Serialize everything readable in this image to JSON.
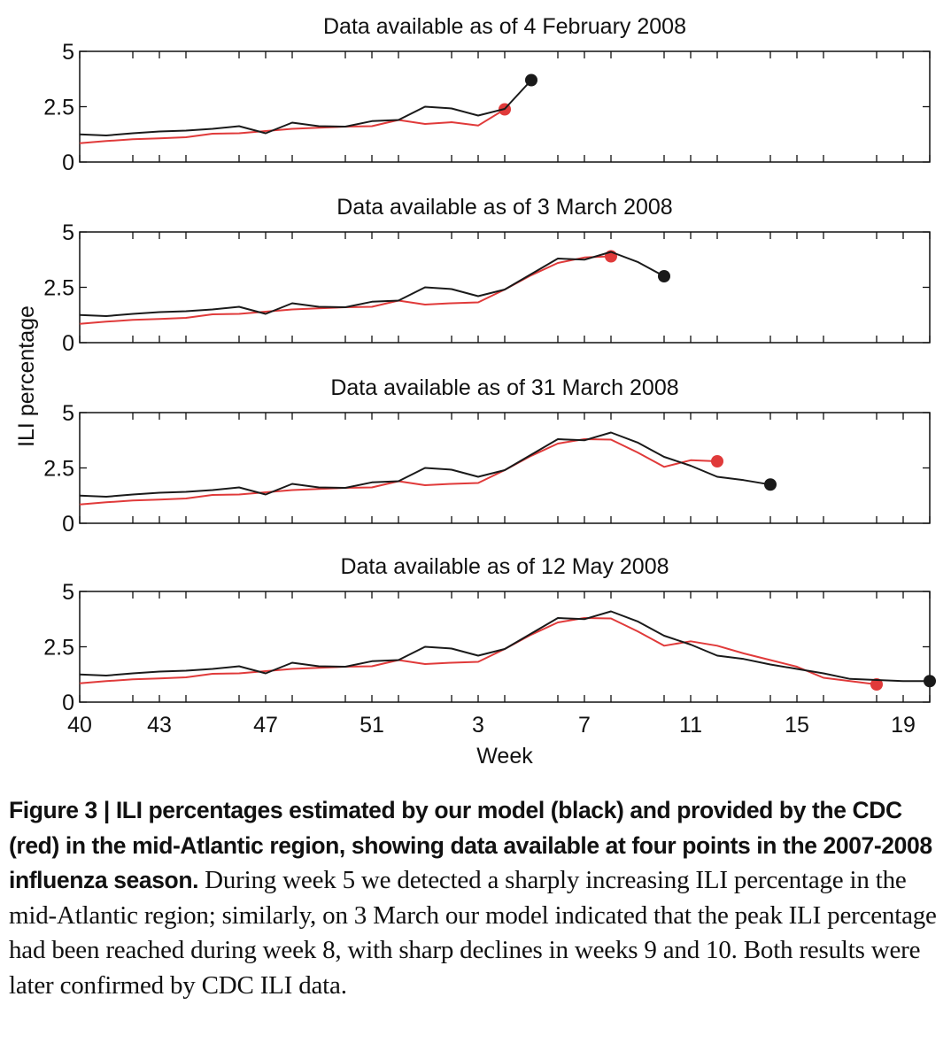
{
  "figure": {
    "ylabel": "ILI percentage",
    "xlabel": "Week",
    "x_tick_labels": [
      "40",
      "43",
      "47",
      "51",
      "3",
      "7",
      "11",
      "15",
      "19"
    ],
    "y_tick_labels": [
      "0",
      "2.5",
      "5"
    ]
  },
  "caption": {
    "bold_text": "Figure 3 | ILI percentages estimated by our model (black) and provided by the CDC (red) in the mid-Atlantic region, showing data available at four points in the 2007-2008 influenza season.",
    "body_text": " During week 5 we detected a sharply increasing ILI percentage in the mid-Atlantic region; similarly, on 3 March our model indicated that the peak ILI percentage had been reached during week 8, with sharp declines in weeks 9 and 10. Both results were later confirmed by CDC ILI data."
  },
  "colors": {
    "model": "#1a1a1a",
    "cdc": "#e03a3a"
  },
  "chart_data": [
    {
      "type": "line",
      "title": "Data available as of 4 February 2008",
      "ylim": [
        0,
        5
      ],
      "xlim_index": [
        0,
        32
      ],
      "series": [
        {
          "name": "model (black)",
          "start_index": 0,
          "values": [
            1.25,
            1.2,
            1.3,
            1.38,
            1.42,
            1.5,
            1.62,
            1.3,
            1.78,
            1.62,
            1.6,
            1.85,
            1.9,
            2.5,
            2.42,
            2.1,
            2.4,
            3.7
          ]
        },
        {
          "name": "CDC (red)",
          "start_index": 0,
          "values": [
            0.85,
            0.95,
            1.03,
            1.07,
            1.12,
            1.28,
            1.3,
            1.4,
            1.5,
            1.55,
            1.6,
            1.62,
            1.9,
            1.72,
            1.8,
            1.65,
            2.38
          ]
        }
      ]
    },
    {
      "type": "line",
      "title": "Data available as of 3 March 2008",
      "ylim": [
        0,
        5
      ],
      "xlim_index": [
        0,
        32
      ],
      "series": [
        {
          "name": "model (black)",
          "start_index": 0,
          "values": [
            1.25,
            1.2,
            1.3,
            1.38,
            1.42,
            1.5,
            1.62,
            1.3,
            1.78,
            1.62,
            1.6,
            1.85,
            1.9,
            2.5,
            2.42,
            2.1,
            2.4,
            3.1,
            3.8,
            3.75,
            4.1,
            3.65,
            3.0
          ]
        },
        {
          "name": "CDC (red)",
          "start_index": 0,
          "values": [
            0.85,
            0.95,
            1.03,
            1.07,
            1.12,
            1.28,
            1.3,
            1.4,
            1.5,
            1.55,
            1.6,
            1.62,
            1.9,
            1.72,
            1.78,
            1.82,
            2.4,
            3.05,
            3.6,
            3.85,
            3.9
          ]
        }
      ]
    },
    {
      "type": "line",
      "title": "Data available as of 31 March 2008",
      "ylim": [
        0,
        5
      ],
      "xlim_index": [
        0,
        32
      ],
      "series": [
        {
          "name": "model (black)",
          "start_index": 0,
          "values": [
            1.25,
            1.2,
            1.3,
            1.38,
            1.42,
            1.5,
            1.62,
            1.3,
            1.78,
            1.62,
            1.6,
            1.85,
            1.9,
            2.5,
            2.42,
            2.1,
            2.4,
            3.1,
            3.8,
            3.75,
            4.1,
            3.65,
            3.0,
            2.6,
            2.1,
            1.95,
            1.75
          ]
        },
        {
          "name": "CDC (red)",
          "start_index": 0,
          "values": [
            0.85,
            0.95,
            1.03,
            1.07,
            1.12,
            1.28,
            1.3,
            1.4,
            1.5,
            1.55,
            1.6,
            1.62,
            1.9,
            1.72,
            1.78,
            1.82,
            2.4,
            3.05,
            3.6,
            3.8,
            3.78,
            3.2,
            2.55,
            2.85,
            2.8
          ]
        }
      ]
    },
    {
      "type": "line",
      "title": "Data available as of 12 May 2008",
      "ylim": [
        0,
        5
      ],
      "xlim_index": [
        0,
        32
      ],
      "series": [
        {
          "name": "model (black)",
          "start_index": 0,
          "values": [
            1.25,
            1.2,
            1.3,
            1.38,
            1.42,
            1.5,
            1.62,
            1.3,
            1.78,
            1.62,
            1.6,
            1.85,
            1.9,
            2.5,
            2.42,
            2.1,
            2.4,
            3.1,
            3.8,
            3.75,
            4.1,
            3.65,
            3.0,
            2.6,
            2.1,
            1.95,
            1.7,
            1.5,
            1.3,
            1.05,
            1.0,
            0.95,
            0.95
          ]
        },
        {
          "name": "CDC (red)",
          "start_index": 0,
          "values": [
            0.85,
            0.95,
            1.03,
            1.07,
            1.12,
            1.28,
            1.3,
            1.4,
            1.5,
            1.55,
            1.6,
            1.62,
            1.9,
            1.72,
            1.78,
            1.82,
            2.4,
            3.05,
            3.6,
            3.8,
            3.78,
            3.2,
            2.55,
            2.75,
            2.55,
            2.2,
            1.9,
            1.6,
            1.1,
            0.95,
            0.8
          ]
        }
      ]
    }
  ]
}
